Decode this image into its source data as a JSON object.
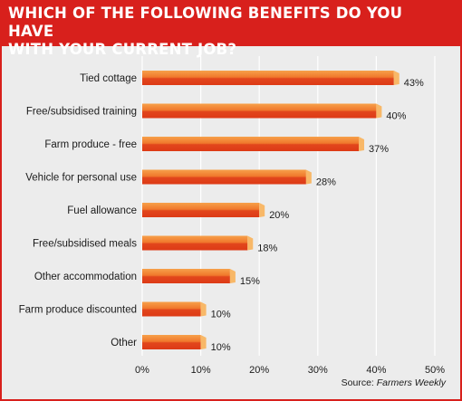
{
  "title": "WHICH OF THE FOLLOWING BENEFITS DO YOU HAVE\nWITH YOUR CURRENT JOB?",
  "source": {
    "prefix": "Source: ",
    "name": "Farmers Weekly"
  },
  "colors": {
    "title_bar": "#d8201c",
    "background": "#ececec",
    "bar_light": "#f7a14a",
    "bar_dark": "#dd3a16",
    "bar_cap": "#f8b868",
    "grid": "#ffffff"
  },
  "chart_data": {
    "type": "bar",
    "orientation": "horizontal",
    "title": "WHICH OF THE FOLLOWING BENEFITS DO YOU HAVE WITH YOUR CURRENT JOB?",
    "categories": [
      "Tied cottage",
      "Free/subsidised training",
      "Farm produce - free",
      "Vehicle for personal use",
      "Fuel allowance",
      "Free/subsidised meals",
      "Other accommodation",
      "Farm produce discounted",
      "Other"
    ],
    "values": [
      43,
      40,
      37,
      28,
      20,
      18,
      15,
      10,
      10
    ],
    "value_labels": [
      "43%",
      "40%",
      "37%",
      "28%",
      "20%",
      "18%",
      "15%",
      "10%",
      "10%"
    ],
    "ticks": [
      0,
      10,
      20,
      30,
      40,
      50
    ],
    "tick_labels": [
      "0%",
      "10%",
      "20%",
      "30%",
      "40%",
      "50%"
    ],
    "xlim": [
      0,
      50
    ],
    "grid": true
  }
}
